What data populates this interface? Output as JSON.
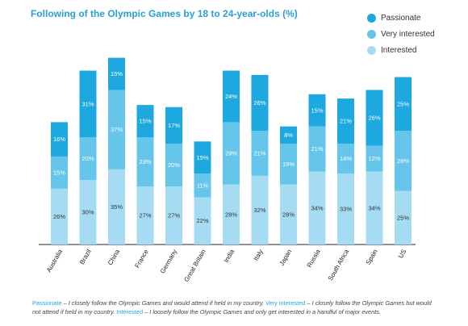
{
  "colors": {
    "passionate": "#1da8df",
    "very_interested": "#66c5ea",
    "interested": "#a6dcf3",
    "title": "#2a9fd6"
  },
  "chart_data": {
    "type": "bar",
    "stacked": true,
    "title": "Following of the Olympic Games by 18 to 24-year-olds (%)",
    "xlabel": "",
    "ylabel": "",
    "ylim": [
      0,
      90
    ],
    "grid": false,
    "legend_position": "top-right",
    "categories": [
      "Australia",
      "Brazil",
      "China",
      "France",
      "Germany",
      "Great Britain",
      "India",
      "Italy",
      "Japan",
      "Russia",
      "South Africa",
      "Spain",
      "US"
    ],
    "series": [
      {
        "name": "Interested",
        "values": [
          26,
          30,
          35,
          27,
          27,
          22,
          28,
          32,
          28,
          34,
          33,
          34,
          25
        ]
      },
      {
        "name": "Very interested",
        "values": [
          15,
          20,
          37,
          23,
          20,
          11,
          29,
          21,
          19,
          21,
          14,
          12,
          28
        ]
      },
      {
        "name": "Passionate",
        "values": [
          16,
          31,
          15,
          15,
          17,
          15,
          24,
          26,
          8,
          15,
          21,
          26,
          25
        ]
      }
    ],
    "legend": [
      "Passionate",
      "Very interested",
      "Interested"
    ]
  },
  "footnote": {
    "passionate_key": "Passionate",
    "passionate_text": " – I closely follow the Olympic Games and would attend if held in my country. ",
    "very_interested_key": "Very interested",
    "very_interested_text": " – I closely follow the Olympic Games but would not attend if held in my country. ",
    "interested_key": "Interested",
    "interested_text": " – I loosely follow the Olympic Games and only get interested in a handful of major events."
  }
}
